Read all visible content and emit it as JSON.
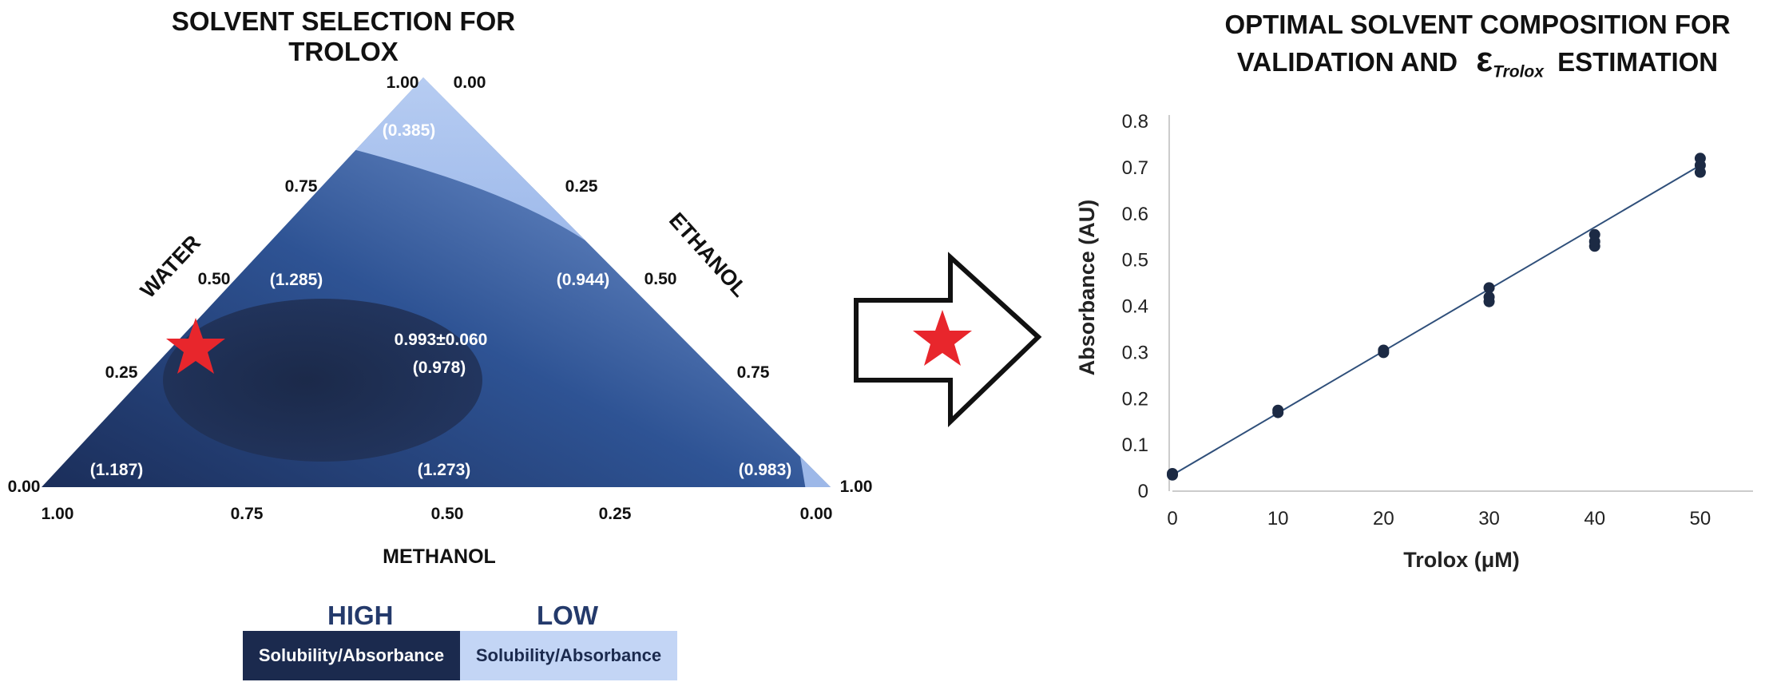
{
  "left_panel": {
    "title": "SOLVENT SELECTION FOR TROLOX",
    "axes": {
      "water": "WATER",
      "ethanol": "ETHANOL",
      "methanol": "METHANOL"
    },
    "ticks": {
      "water": [
        "1.00",
        "0.75",
        "0.50",
        "0.25",
        "0.00"
      ],
      "ethanol": [
        "0.00",
        "0.25",
        "0.50",
        "0.75",
        "1.00"
      ],
      "methanol": [
        "1.00",
        "0.75",
        "0.50",
        "0.25",
        "0.00"
      ]
    },
    "region_values": {
      "top": "(0.385)",
      "upper_left": "(1.285)",
      "upper_right": "(0.944)",
      "center_mean": "0.993±0.060",
      "center": "(0.978)",
      "bottom_left": "(1.187)",
      "bottom_center": "(1.273)",
      "bottom_right": "(0.983)"
    },
    "legend": {
      "high_heading": "HIGH",
      "low_heading": "LOW",
      "high_label": "Solubility/Absorbance",
      "low_label": "Solubility/Absorbance",
      "high_color": "#1b2a4e",
      "low_color": "#c3d5f5"
    },
    "marker_icon": "red-star-icon"
  },
  "arrow_icon": "right-arrow-icon",
  "right_panel": {
    "title_line1": "OPTIMAL SOLVENT COMPOSITION FOR",
    "title_line2_prefix": "VALIDATION AND",
    "title_symbol": "ε",
    "title_subscript": "Trolox",
    "title_line2_suffix": "ESTIMATION"
  },
  "chart_data": {
    "type": "scatter",
    "xlabel": "Trolox (μM)",
    "ylabel": "Absorbance (AU)",
    "xlim": [
      0,
      55
    ],
    "ylim": [
      0,
      0.8
    ],
    "x_ticks": [
      0,
      10,
      20,
      30,
      40,
      50
    ],
    "y_ticks": [
      0,
      0.1,
      0.2,
      0.3,
      0.4,
      0.5,
      0.6,
      0.7,
      0.8
    ],
    "y_tick_labels": [
      "0",
      "0.1",
      "0.2",
      "0.3",
      "0.4",
      "0.5",
      "0.6",
      "0.7",
      "0.8"
    ],
    "x_tick_labels": [
      "0",
      "10",
      "20",
      "30",
      "40",
      "50"
    ],
    "points": [
      {
        "x": 0,
        "y": 0.035
      },
      {
        "x": 0,
        "y": 0.038
      },
      {
        "x": 10,
        "y": 0.17
      },
      {
        "x": 10,
        "y": 0.175
      },
      {
        "x": 20,
        "y": 0.3
      },
      {
        "x": 20,
        "y": 0.305
      },
      {
        "x": 30,
        "y": 0.41
      },
      {
        "x": 30,
        "y": 0.42
      },
      {
        "x": 30,
        "y": 0.44
      },
      {
        "x": 40,
        "y": 0.53
      },
      {
        "x": 40,
        "y": 0.54
      },
      {
        "x": 40,
        "y": 0.555
      },
      {
        "x": 50,
        "y": 0.69
      },
      {
        "x": 50,
        "y": 0.705
      },
      {
        "x": 50,
        "y": 0.72
      }
    ],
    "fit_line": {
      "x": [
        0,
        50
      ],
      "y": [
        0.035,
        0.705
      ]
    },
    "grid": false,
    "point_color": "#1c2a44",
    "line_color": "#2f4f7a"
  }
}
